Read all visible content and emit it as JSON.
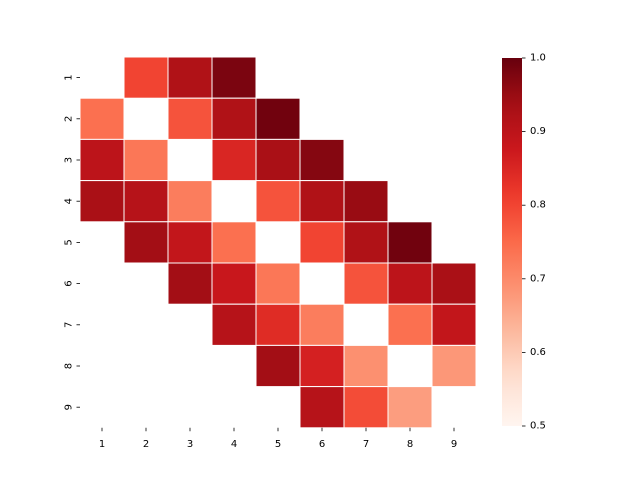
{
  "chart_data": {
    "type": "heatmap",
    "colormap": "Reds",
    "x_categories": [
      "1",
      "2",
      "3",
      "4",
      "5",
      "6",
      "7",
      "8",
      "9"
    ],
    "y_categories": [
      "1",
      "2",
      "3",
      "4",
      "5",
      "6",
      "7",
      "8",
      "9"
    ],
    "values": [
      [
        null,
        0.8,
        0.92,
        0.98,
        null,
        null,
        null,
        null,
        null
      ],
      [
        0.74,
        null,
        0.78,
        0.92,
        0.99,
        null,
        null,
        null,
        null
      ],
      [
        0.9,
        0.73,
        null,
        0.85,
        0.93,
        0.97,
        null,
        null,
        null
      ],
      [
        0.93,
        0.91,
        0.72,
        null,
        0.78,
        0.92,
        0.95,
        null,
        null
      ],
      [
        null,
        0.94,
        0.89,
        0.74,
        null,
        0.8,
        0.92,
        0.99,
        null
      ],
      [
        null,
        null,
        0.94,
        0.88,
        0.73,
        null,
        0.78,
        0.9,
        0.93
      ],
      [
        null,
        null,
        null,
        0.91,
        0.84,
        0.72,
        null,
        0.74,
        0.89
      ],
      [
        null,
        null,
        null,
        null,
        0.94,
        0.86,
        0.69,
        null,
        0.68
      ],
      [
        null,
        null,
        null,
        null,
        null,
        0.91,
        0.79,
        0.67,
        null
      ]
    ],
    "colorbar": {
      "min": 0.5,
      "max": 1.0,
      "ticks": [
        "0.5",
        "0.6",
        "0.7",
        "0.8",
        "0.9",
        "1.0"
      ]
    },
    "grid": false,
    "title": "",
    "xlabel": "",
    "ylabel": ""
  }
}
